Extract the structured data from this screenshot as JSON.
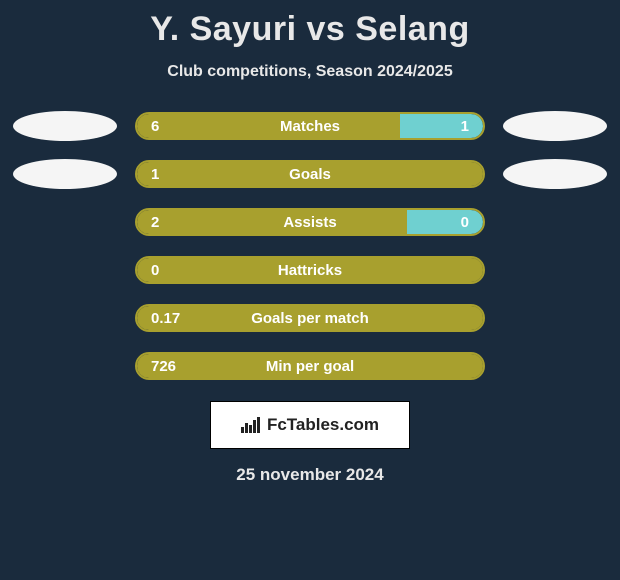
{
  "header": {
    "title": "Y. Sayuri vs Selang",
    "subtitle": "Club competitions, Season 2024/2025"
  },
  "colors": {
    "player1": "#a8a02e",
    "player2": "#6fd0d0",
    "background": "#1a2b3d",
    "ellipse": "#f5f5f5",
    "text": "#ffffff"
  },
  "stats": [
    {
      "label": "Matches",
      "left_value": "6",
      "right_value": "1",
      "left_pct": 76,
      "right_pct": 24,
      "show_left_ellipse": true,
      "show_right_ellipse": true
    },
    {
      "label": "Goals",
      "left_value": "1",
      "right_value": "",
      "left_pct": 100,
      "right_pct": 0,
      "show_left_ellipse": true,
      "show_right_ellipse": true
    },
    {
      "label": "Assists",
      "left_value": "2",
      "right_value": "0",
      "left_pct": 78,
      "right_pct": 22,
      "show_left_ellipse": false,
      "show_right_ellipse": false
    },
    {
      "label": "Hattricks",
      "left_value": "0",
      "right_value": "",
      "left_pct": 100,
      "right_pct": 0,
      "show_left_ellipse": false,
      "show_right_ellipse": false
    },
    {
      "label": "Goals per match",
      "left_value": "0.17",
      "right_value": "",
      "left_pct": 100,
      "right_pct": 0,
      "show_left_ellipse": false,
      "show_right_ellipse": false
    },
    {
      "label": "Min per goal",
      "left_value": "726",
      "right_value": "",
      "left_pct": 100,
      "right_pct": 0,
      "show_left_ellipse": false,
      "show_right_ellipse": false
    }
  ],
  "brand": {
    "label": "FcTables.com",
    "icon": "bar-chart-icon"
  },
  "footer": {
    "date": "25 november 2024"
  }
}
